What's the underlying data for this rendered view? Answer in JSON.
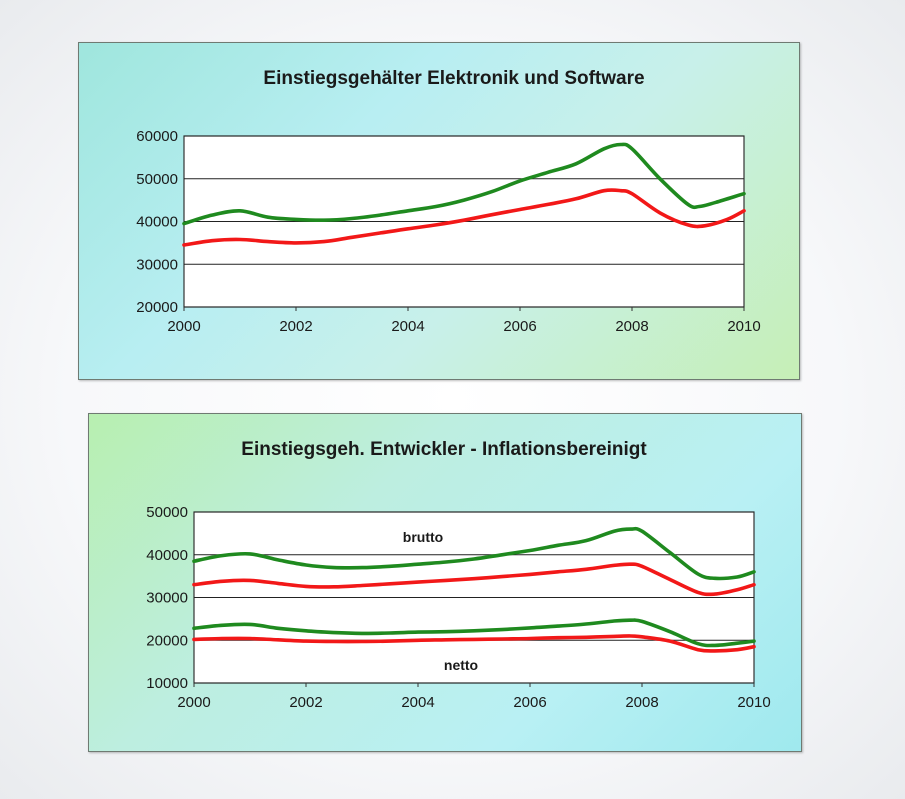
{
  "colors": {
    "green_series": "#1f8a1f",
    "red_series": "#f21818",
    "grid": "#222222"
  },
  "chart_data": [
    {
      "type": "line",
      "title": "Einstiegsgehälter Elektronik und Software",
      "xlabel": "",
      "ylabel": "",
      "xlim": [
        2000,
        2010
      ],
      "ylim": [
        20000,
        60000
      ],
      "x_ticks": [
        "2000",
        "2002",
        "2004",
        "2006",
        "2008",
        "2010"
      ],
      "y_ticks": [
        "60000",
        "50000",
        "40000",
        "30000",
        "20000"
      ],
      "y_tick_values": [
        60000,
        50000,
        40000,
        30000,
        20000
      ],
      "grid": true,
      "legend": "none",
      "series": [
        {
          "color": "green",
          "x": [
            2000,
            2000.5,
            2001,
            2001.5,
            2002,
            2002.5,
            2003,
            2003.5,
            2004,
            2004.5,
            2005,
            2005.5,
            2006,
            2006.5,
            2007,
            2007.5,
            2007.8,
            2008,
            2008.5,
            2009,
            2009.2,
            2009.5,
            2010
          ],
          "y": [
            39500,
            41500,
            42500,
            41000,
            40500,
            40300,
            40700,
            41500,
            42500,
            43500,
            45000,
            47000,
            49500,
            51500,
            53500,
            57000,
            58000,
            57000,
            50000,
            44000,
            43500,
            44500,
            46500
          ]
        },
        {
          "color": "red",
          "x": [
            2000,
            2000.5,
            2001,
            2001.5,
            2002,
            2002.5,
            2003,
            2003.5,
            2004,
            2004.5,
            2005,
            2005.5,
            2006,
            2006.5,
            2007,
            2007.5,
            2007.8,
            2008,
            2008.5,
            2009,
            2009.3,
            2009.7,
            2010
          ],
          "y": [
            34500,
            35500,
            35800,
            35300,
            35000,
            35300,
            36300,
            37300,
            38300,
            39200,
            40300,
            41600,
            42800,
            44000,
            45300,
            47200,
            47200,
            46500,
            42000,
            39200,
            39000,
            40500,
            42500
          ]
        }
      ]
    },
    {
      "type": "line",
      "title": "Einstiegsgeh. Entwickler - Inflationsbereinigt",
      "xlabel": "",
      "ylabel": "",
      "xlim": [
        2000,
        2010
      ],
      "ylim": [
        10000,
        50000
      ],
      "x_ticks": [
        "2000",
        "2002",
        "2004",
        "2006",
        "2008",
        "2010"
      ],
      "y_ticks": [
        "50000",
        "40000",
        "30000",
        "20000",
        "10000"
      ],
      "y_tick_values": [
        50000,
        40000,
        30000,
        20000,
        10000
      ],
      "grid": true,
      "legend": "none",
      "annotations": [
        "brutto",
        "netto"
      ],
      "series": [
        {
          "color": "green",
          "x": [
            2000,
            2000.5,
            2001,
            2001.5,
            2002,
            2002.5,
            2003,
            2003.5,
            2004,
            2004.5,
            2005,
            2005.5,
            2006,
            2006.5,
            2007,
            2007.5,
            2007.8,
            2008,
            2008.5,
            2009,
            2009.3,
            2009.7,
            2010
          ],
          "y": [
            38500,
            39800,
            40200,
            38800,
            37600,
            37000,
            37000,
            37300,
            37800,
            38300,
            39000,
            40000,
            41000,
            42200,
            43300,
            45500,
            46000,
            45500,
            40500,
            35500,
            34500,
            34800,
            36000
          ]
        },
        {
          "color": "red",
          "x": [
            2000,
            2000.5,
            2001,
            2001.5,
            2002,
            2002.5,
            2003,
            2003.5,
            2004,
            2004.5,
            2005,
            2005.5,
            2006,
            2006.5,
            2007,
            2007.5,
            2007.8,
            2008,
            2008.5,
            2009,
            2009.3,
            2009.7,
            2010
          ],
          "y": [
            33000,
            33800,
            34000,
            33300,
            32600,
            32500,
            32800,
            33200,
            33600,
            34000,
            34400,
            34900,
            35400,
            36000,
            36600,
            37500,
            37800,
            37300,
            34200,
            31200,
            30800,
            31800,
            33000
          ]
        },
        {
          "color": "green",
          "x": [
            2000,
            2000.5,
            2001,
            2001.5,
            2002,
            2002.5,
            2003,
            2003.5,
            2004,
            2004.5,
            2005,
            2005.5,
            2006,
            2006.5,
            2007,
            2007.5,
            2007.8,
            2008,
            2008.5,
            2009,
            2009.3,
            2009.7,
            2010
          ],
          "y": [
            22800,
            23500,
            23700,
            22800,
            22200,
            21800,
            21600,
            21700,
            21900,
            22000,
            22200,
            22500,
            22900,
            23300,
            23800,
            24500,
            24700,
            24400,
            22000,
            19200,
            18800,
            19300,
            19800
          ]
        },
        {
          "color": "red",
          "x": [
            2000,
            2000.5,
            2001,
            2001.5,
            2002,
            2002.5,
            2003,
            2003.5,
            2004,
            2004.5,
            2005,
            2005.5,
            2006,
            2006.5,
            2007,
            2007.5,
            2007.8,
            2008,
            2008.5,
            2009,
            2009.3,
            2009.7,
            2010
          ],
          "y": [
            20200,
            20400,
            20400,
            20100,
            19800,
            19700,
            19700,
            19800,
            20000,
            20100,
            20200,
            20300,
            20400,
            20600,
            20700,
            20900,
            21000,
            20800,
            19800,
            17800,
            17500,
            17800,
            18500
          ]
        }
      ]
    }
  ]
}
